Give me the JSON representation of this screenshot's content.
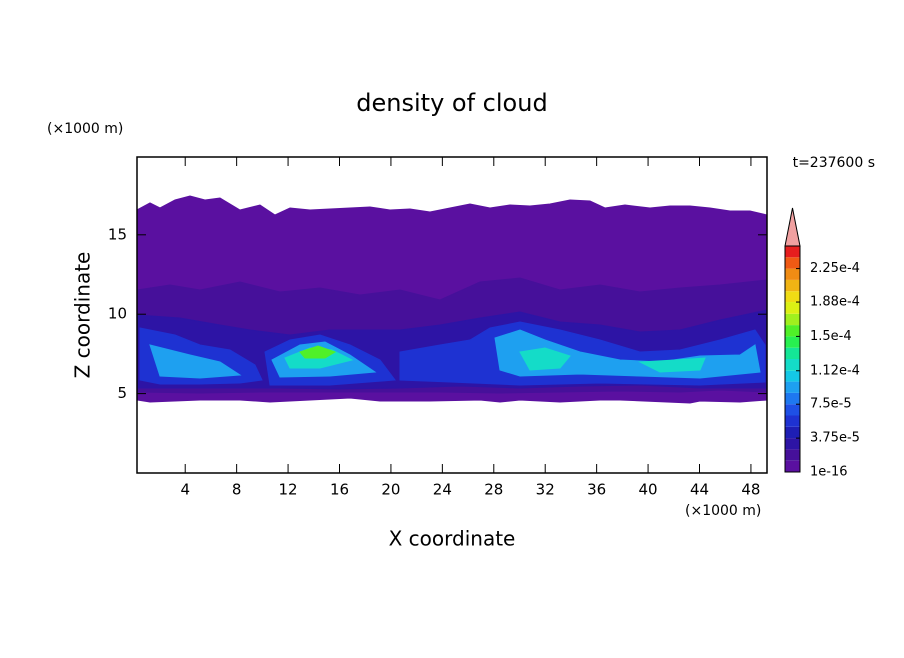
{
  "chart_data": {
    "type": "contour",
    "title": "density of cloud",
    "x_label": "X coordinate",
    "y_label": "Z coordinate",
    "x_unit": "(×1000 m)",
    "y_unit": "(×1000 m)",
    "annotation": "t=237600 s",
    "xlim": [
      0.25,
      49.25
    ],
    "ylim": [
      0,
      19.9
    ],
    "xticks": [
      4,
      8,
      12,
      16,
      20,
      24,
      28,
      32,
      36,
      40,
      44,
      48
    ],
    "yticks": [
      5,
      10,
      15
    ],
    "levels": [
      1e-16,
      1.25e-05,
      2.5e-05,
      3.75e-05,
      5e-05,
      6.25e-05,
      7.5e-05,
      8.75e-05,
      0.0001,
      0.000112,
      0.000125,
      0.0001375,
      0.00015,
      0.0001625,
      0.000175,
      0.000188,
      0.0002,
      0.0002125,
      0.000225,
      0.0002375,
      0.00025
    ],
    "colors": [
      "#5a10a0",
      "#46109a",
      "#2d14a5",
      "#1e1eb4",
      "#1e32d2",
      "#1e50e6",
      "#1e78f0",
      "#1ea0f0",
      "#14c8e6",
      "#14dcc8",
      "#14e696",
      "#28f050",
      "#50f028",
      "#a0f01e",
      "#dcf014",
      "#f0dc14",
      "#f0b414",
      "#f08c14",
      "#f05a14",
      "#e61e1e"
    ],
    "extend_color": "#f0a0a0",
    "colorbar_ticks": [
      {
        "value": 1e-16,
        "label": "1e-16"
      },
      {
        "value": 3.75e-05,
        "label": "3.75e-5"
      },
      {
        "value": 7.5e-05,
        "label": "7.5e-5"
      },
      {
        "value": 0.000112,
        "label": "1.12e-4"
      },
      {
        "value": 0.00015,
        "label": "1.5e-4"
      },
      {
        "value": 0.000188,
        "label": "1.88e-4"
      },
      {
        "value": 0.000225,
        "label": "2.25e-4"
      }
    ]
  }
}
